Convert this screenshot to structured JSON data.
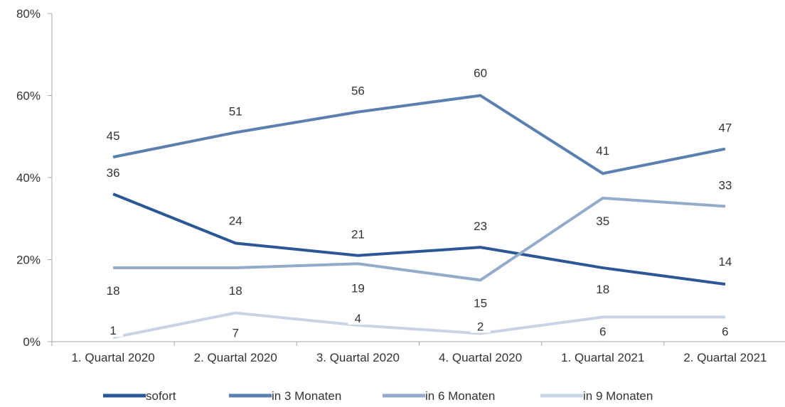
{
  "chart_data": {
    "type": "line",
    "title": "",
    "xlabel": "",
    "ylabel": "",
    "categories": [
      "1. Quartal 2020",
      "2. Quartal 2020",
      "3. Quartal 2020",
      "4. Quartal 2020",
      "1. Quartal 2021",
      "2. Quartal 2021"
    ],
    "ylim": [
      0,
      80
    ],
    "yticks": [
      0,
      20,
      40,
      60,
      80
    ],
    "ytick_labels": [
      "0%",
      "20%",
      "40%",
      "60%",
      "80%"
    ],
    "grid": false,
    "legend_position": "bottom",
    "series": [
      {
        "name": "sofort",
        "color": "#2b5797",
        "values": [
          36,
          24,
          21,
          23,
          18,
          14
        ],
        "labels": [
          "36",
          "24",
          "21",
          "23",
          "18",
          "14"
        ]
      },
      {
        "name": "in 3 Monaten",
        "color": "#5b7fae",
        "values": [
          45,
          51,
          56,
          60,
          41,
          47
        ],
        "labels": [
          "45",
          "51",
          "56",
          "60",
          "41",
          "47"
        ]
      },
      {
        "name": "in 6 Monaten",
        "color": "#93abcb",
        "values": [
          18,
          18,
          19,
          15,
          35,
          33
        ],
        "labels": [
          "18",
          "18",
          "19",
          "15",
          "35",
          "33"
        ]
      },
      {
        "name": "in 9 Monaten",
        "color": "#c8d4e5",
        "values": [
          1,
          7,
          4,
          2,
          6,
          6
        ],
        "labels": [
          "1",
          "7",
          "4",
          "2",
          "6",
          "6"
        ]
      }
    ]
  }
}
